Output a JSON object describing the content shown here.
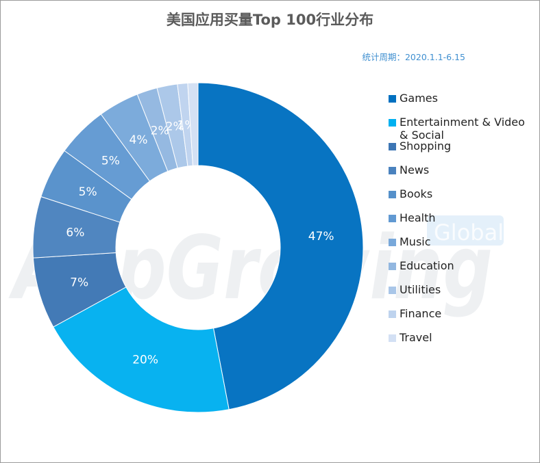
{
  "chart_data": {
    "type": "pie",
    "title": "美国应用买量Top 100行业分布",
    "subtitle": "统计周期：2020.1.1-6.15",
    "donut": true,
    "legend_position": "right",
    "categories": [
      "Games",
      "Entertainment & Video & Social",
      "Shopping",
      "News",
      "Books",
      "Health",
      "Music",
      "Education",
      "Utilities",
      "Finance",
      "Travel"
    ],
    "values": [
      47,
      20,
      7,
      6,
      5,
      5,
      4,
      2,
      2,
      1,
      1
    ],
    "labels": [
      "47%",
      "20%",
      "7%",
      "6%",
      "5%",
      "5%",
      "4%",
      "2%",
      "2%",
      "1%",
      ""
    ],
    "colors": [
      "#0070c0",
      "#00b0f0",
      "#3d76b4",
      "#4a82be",
      "#5590ca",
      "#6199d2",
      "#78a8da",
      "#92b7e0",
      "#a9c6e8",
      "#bed3ee",
      "#d3e0f4"
    ]
  },
  "watermark": {
    "text": "AppGrowing",
    "badge": "Global"
  }
}
